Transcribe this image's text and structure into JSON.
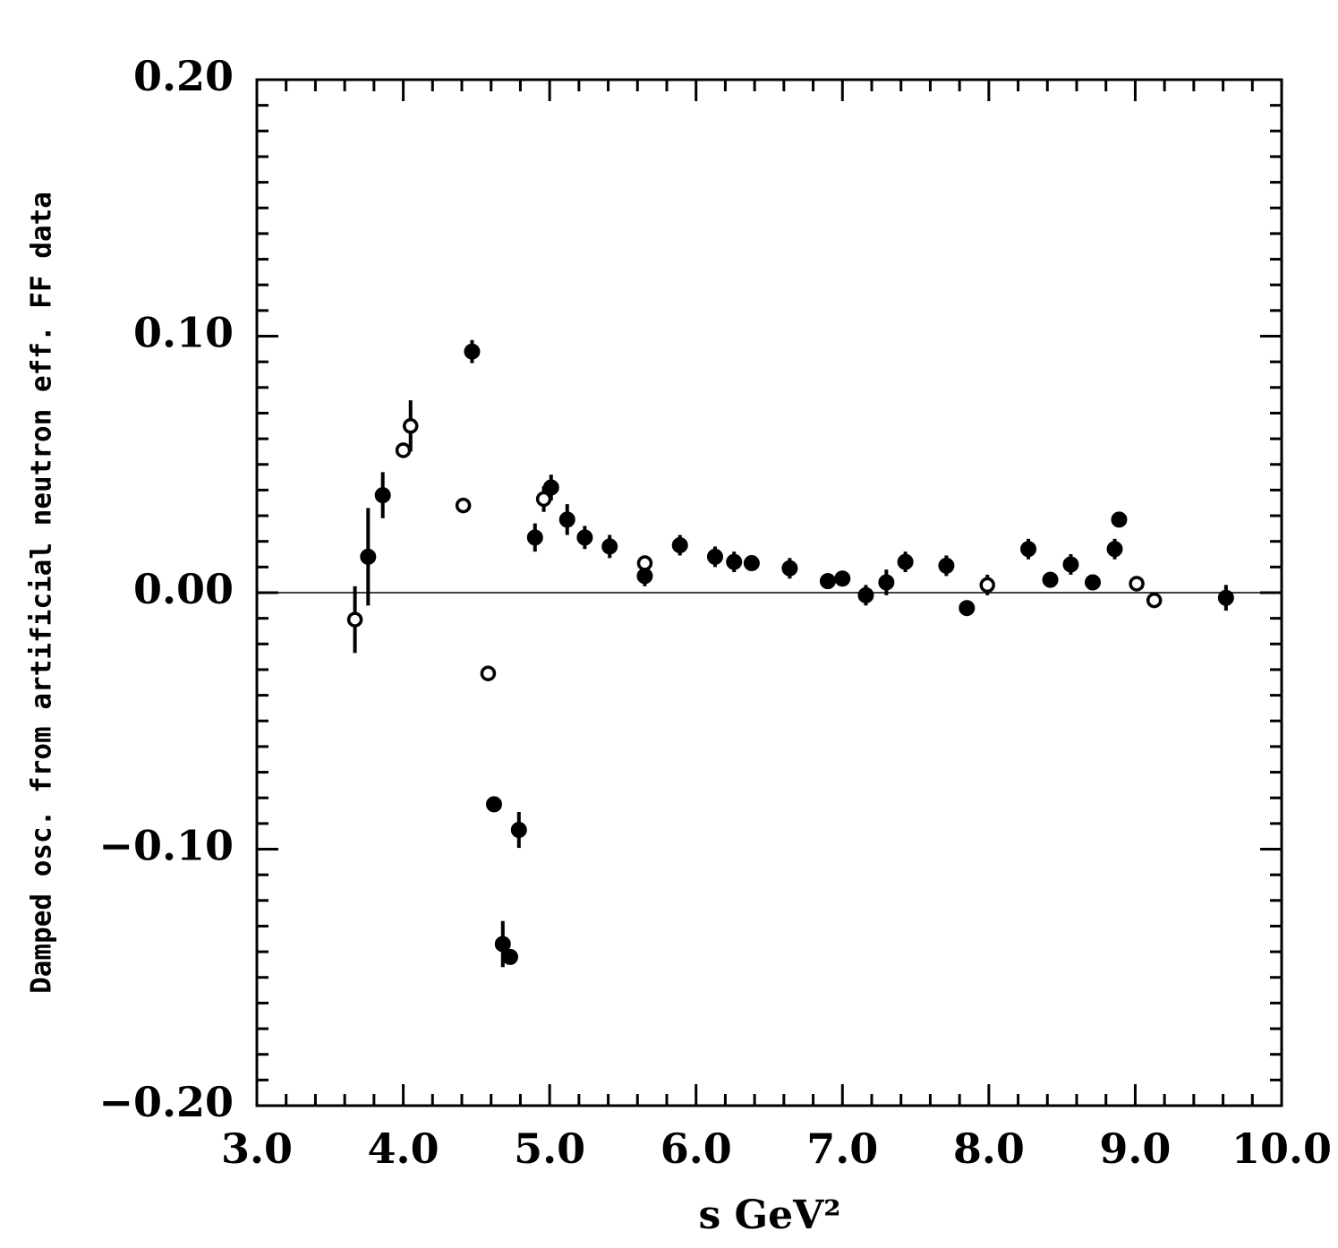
{
  "chart_data": {
    "type": "scatter",
    "xlabel": "s   GeV²",
    "ylabel": "Damped osc. from artificial neutron eff. FF data",
    "xlim": [
      3.0,
      10.0
    ],
    "ylim": [
      -0.2,
      0.2
    ],
    "xticks": [
      {
        "value": 3,
        "label": "3.0"
      },
      {
        "value": 4,
        "label": "4.0"
      },
      {
        "value": 5,
        "label": "5.0"
      },
      {
        "value": 6,
        "label": "6.0"
      },
      {
        "value": 7,
        "label": "7.0"
      },
      {
        "value": 8,
        "label": "8.0"
      },
      {
        "value": 9,
        "label": "9.0"
      },
      {
        "value": 10,
        "label": "10.0"
      }
    ],
    "yticks": [
      {
        "value": -0.2,
        "label": "−0.20"
      },
      {
        "value": -0.1,
        "label": "−0.10"
      },
      {
        "value": 0,
        "label": "0.00"
      },
      {
        "value": 0.1,
        "label": "0.10"
      },
      {
        "value": 0.2,
        "label": "0.20"
      }
    ],
    "x_minor_divisions": 5,
    "y_minor_divisions": 10,
    "reference_line": 0,
    "series": [
      {
        "marker": "filled",
        "color": "#000000",
        "x": [
          3.76,
          3.86,
          4.47,
          4.62,
          4.68,
          4.73,
          4.79,
          4.9,
          5.01,
          5.12,
          5.24,
          5.41,
          5.65,
          5.89,
          6.13,
          6.26,
          6.38,
          6.64,
          6.9,
          7.0,
          7.16,
          7.3,
          7.43,
          7.71,
          7.85,
          8.27,
          8.42,
          8.56,
          8.71,
          8.86,
          8.89,
          9.62
        ],
        "values": [
          0.014,
          0.038,
          0.094,
          -0.0825,
          -0.137,
          -0.142,
          -0.0925,
          0.0215,
          0.041,
          0.0285,
          0.0215,
          0.018,
          0.0065,
          0.0185,
          0.014,
          0.012,
          0.0115,
          0.0095,
          0.0045,
          0.0055,
          -0.001,
          0.004,
          0.012,
          0.0105,
          -0.006,
          0.017,
          0.005,
          0.011,
          0.004,
          0.017,
          0.0285,
          -0.002
        ],
        "errors": [
          0.019,
          0.009,
          0.0045,
          0.003,
          0.009,
          0.002,
          0.007,
          0.0055,
          0.005,
          0.006,
          0.0045,
          0.0045,
          0.004,
          0.004,
          0.004,
          0.004,
          0.0025,
          0.004,
          0.002,
          0.002,
          0.004,
          0.005,
          0.004,
          0.004,
          0.001,
          0.004,
          0.001,
          0.004,
          0.001,
          0.004,
          0.001,
          0.005
        ]
      },
      {
        "marker": "open",
        "color": "#000000",
        "x": [
          3.67,
          4.0,
          4.05,
          4.41,
          4.58,
          4.96,
          5.65,
          7.99,
          9.01,
          9.13
        ],
        "values": [
          -0.0105,
          0.0555,
          0.065,
          0.034,
          -0.0315,
          0.0365,
          0.0115,
          0.003,
          0.0035,
          -0.003
        ],
        "errors": [
          0.013,
          0.003,
          0.01,
          0.002,
          0.0005,
          0.005,
          0.003,
          0.004,
          0.001,
          0.001
        ]
      }
    ]
  }
}
